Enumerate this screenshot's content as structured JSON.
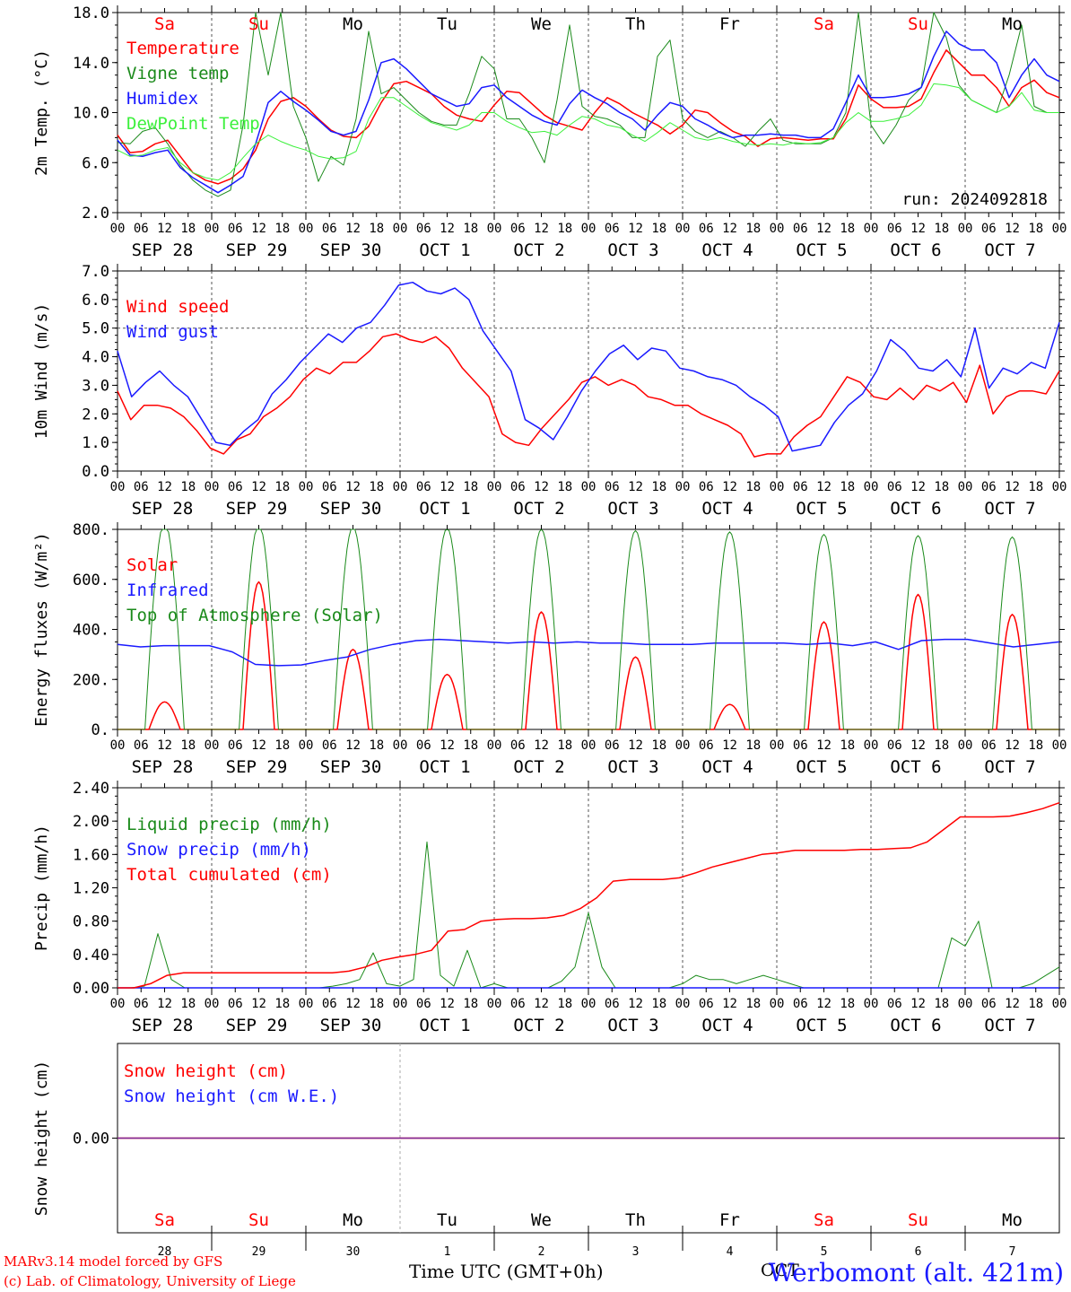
{
  "days": {
    "dow": [
      "Sa",
      "Su",
      "Mo",
      "Tu",
      "We",
      "Th",
      "Fr",
      "Sa",
      "Su",
      "Mo"
    ],
    "weekend": [
      true,
      true,
      false,
      false,
      false,
      false,
      false,
      true,
      true,
      false
    ],
    "dates": [
      "SEP 28",
      "SEP 29",
      "SEP 30",
      "OCT  1",
      "OCT  2",
      "OCT  3",
      "OCT  4",
      "OCT  5",
      "OCT  6",
      "OCT  7"
    ],
    "day_numbers": [
      "28",
      "29",
      "30",
      "1",
      "2",
      "3",
      "4",
      "5",
      "6",
      "7"
    ],
    "hour_ticks": [
      "00",
      "06",
      "12",
      "18"
    ],
    "last_hour": "00"
  },
  "colors": {
    "red": "#ff0000",
    "darkgreen": "#1a8a1a",
    "blue": "#1a1aff",
    "lightgreen": "#3cf03c",
    "purple": "#7a2a9a",
    "axis": "#000000",
    "grid": "#555555"
  },
  "run_label": "run: 2024092818",
  "footer": {
    "model": "MARv3.14 model forced by GFS",
    "lab": "(c) Lab. of Climatology, University of Liege",
    "xlabel": "Time UTC (GMT+0h)",
    "month": "OCT",
    "station": "Werbomont (alt. 421m)"
  },
  "chart_data": [
    {
      "type": "line",
      "ylabel": "2m Temp. (°C)",
      "ylim": [
        2.0,
        18.0
      ],
      "yticks": [
        "2.0",
        "6.0",
        "10.0",
        "14.0",
        "18.0"
      ],
      "ytick_values": [
        2,
        6,
        10,
        14,
        18
      ],
      "grid": "vertical dotted at day boundaries",
      "legend": "top-left",
      "series": [
        {
          "name": "Temperature",
          "color": "red",
          "values": [
            8.2,
            6.8,
            6.9,
            7.5,
            7.8,
            6.5,
            5.2,
            4.6,
            4.3,
            4.7,
            5.5,
            7.0,
            9.5,
            10.9,
            11.2,
            10.5,
            9.5,
            8.6,
            8.1,
            8.0,
            8.9,
            10.8,
            12.3,
            12.5,
            12.0,
            11.5,
            10.5,
            9.8,
            9.5,
            9.3,
            10.6,
            11.7,
            11.6,
            10.7,
            9.8,
            9.2,
            8.9,
            8.6,
            10.0,
            11.2,
            10.7,
            10.0,
            9.5,
            9.0,
            8.3,
            9.0,
            10.2,
            10.0,
            9.2,
            8.5,
            8.1,
            7.3,
            7.9,
            8.0,
            7.9,
            7.8,
            7.9,
            7.9,
            9.5,
            12.2,
            11.1,
            10.4,
            10.4,
            10.5,
            11.1,
            13.2,
            15.0,
            14.0,
            13.0,
            13.0,
            12.0,
            10.5,
            12.0,
            12.6,
            11.6,
            11.2
          ]
        },
        {
          "name": "Vigne temp",
          "color": "darkgreen",
          "values": [
            7.6,
            7.5,
            8.5,
            8.8,
            7.5,
            5.8,
            4.6,
            3.8,
            3.3,
            3.8,
            9.0,
            18.0,
            13.0,
            18.0,
            10.5,
            8.0,
            4.5,
            6.5,
            5.8,
            9.5,
            16.5,
            11.5,
            12.0,
            11.0,
            10.0,
            9.3,
            9.0,
            9.0,
            11.5,
            14.5,
            13.5,
            9.5,
            9.5,
            8.0,
            6.0,
            11.0,
            17.0,
            10.5,
            9.7,
            9.5,
            9.0,
            8.0,
            8.0,
            14.5,
            15.8,
            9.5,
            8.5,
            8.0,
            8.5,
            8.0,
            7.3,
            8.5,
            9.5,
            7.8,
            7.5,
            7.5,
            7.5,
            8.0,
            10.0,
            18.0,
            9.0,
            7.5,
            9.0,
            11.0,
            12.0,
            18.0,
            16.0,
            12.2,
            11.0,
            10.5,
            10.0,
            13.0,
            17.0,
            10.5,
            10.0,
            10.0
          ]
        },
        {
          "name": "Humidex",
          "color": "blue",
          "values": [
            7.8,
            6.6,
            6.5,
            6.8,
            7.0,
            5.6,
            4.8,
            4.2,
            3.6,
            4.2,
            4.9,
            7.5,
            10.8,
            11.7,
            10.9,
            10.2,
            9.4,
            8.5,
            8.2,
            8.5,
            11.0,
            14.0,
            14.3,
            13.5,
            12.5,
            11.5,
            11.0,
            10.5,
            10.7,
            12.0,
            12.2,
            11.2,
            10.5,
            9.8,
            9.3,
            9.0,
            10.7,
            11.8,
            11.2,
            10.7,
            10.0,
            9.5,
            8.6,
            9.8,
            10.8,
            10.5,
            9.5,
            9.0,
            8.4,
            8.0,
            8.2,
            8.2,
            8.3,
            8.2,
            8.2,
            8.0,
            8.0,
            8.7,
            10.8,
            13.0,
            11.2,
            11.2,
            11.3,
            11.5,
            12.0,
            14.5,
            16.5,
            15.5,
            15.0,
            15.0,
            14.0,
            11.2,
            13.0,
            14.3,
            13.0,
            12.5
          ]
        },
        {
          "name": "DewPoint Temp",
          "color": "lightgreen",
          "values": [
            7.0,
            6.5,
            6.6,
            7.0,
            7.2,
            6.0,
            5.2,
            4.8,
            4.6,
            5.2,
            6.4,
            7.5,
            8.2,
            7.7,
            7.3,
            7.0,
            6.5,
            6.3,
            6.4,
            6.9,
            9.5,
            11.2,
            11.2,
            10.5,
            9.8,
            9.2,
            8.9,
            8.6,
            9.0,
            10.0,
            10.0,
            9.3,
            8.8,
            8.4,
            8.5,
            8.2,
            9.0,
            9.7,
            9.5,
            9.0,
            8.8,
            8.2,
            7.7,
            8.4,
            9.2,
            8.6,
            8.0,
            7.8,
            8.0,
            7.7,
            7.5,
            7.4,
            7.5,
            7.4,
            7.6,
            7.5,
            7.6,
            8.0,
            9.2,
            10.0,
            9.3,
            9.3,
            9.5,
            9.8,
            10.6,
            12.3,
            12.2,
            12.0,
            11.0,
            10.5,
            10.0,
            10.5,
            11.6,
            10.2,
            10.0,
            10.0
          ]
        }
      ]
    },
    {
      "type": "line",
      "ylabel": "10m Wind (m/s)",
      "ylim": [
        0.0,
        7.0
      ],
      "yticks": [
        "0.0",
        "1.0",
        "2.0",
        "3.0",
        "4.0",
        "5.0",
        "6.0",
        "7.0"
      ],
      "ytick_values": [
        0,
        1,
        2,
        3,
        4,
        5,
        6,
        7
      ],
      "reference_line": 5.0,
      "legend": "top-left",
      "series": [
        {
          "name": "Wind speed",
          "color": "red",
          "values": [
            2.8,
            1.8,
            2.3,
            2.3,
            2.2,
            1.9,
            1.4,
            0.8,
            0.6,
            1.1,
            1.3,
            1.9,
            2.2,
            2.6,
            3.2,
            3.6,
            3.4,
            3.8,
            3.8,
            4.2,
            4.7,
            4.8,
            4.6,
            4.5,
            4.7,
            4.3,
            3.6,
            3.1,
            2.6,
            1.3,
            1.0,
            0.9,
            1.5,
            2.0,
            2.5,
            3.1,
            3.3,
            3.0,
            3.2,
            3.0,
            2.6,
            2.5,
            2.3,
            2.3,
            2.0,
            1.8,
            1.6,
            1.3,
            0.5,
            0.6,
            0.6,
            1.2,
            1.6,
            1.9,
            2.6,
            3.3,
            3.1,
            2.6,
            2.5,
            2.9,
            2.5,
            3.0,
            2.8,
            3.1,
            2.4,
            3.7,
            2.0,
            2.6,
            2.8,
            2.8,
            2.7,
            3.5
          ]
        },
        {
          "name": "Wind gust",
          "color": "blue",
          "values": [
            4.2,
            2.6,
            3.1,
            3.5,
            3.0,
            2.6,
            1.8,
            1.0,
            0.9,
            1.4,
            1.8,
            2.7,
            3.2,
            3.8,
            4.3,
            4.8,
            4.5,
            5.0,
            5.2,
            5.8,
            6.5,
            6.6,
            6.3,
            6.2,
            6.4,
            6.0,
            4.9,
            4.2,
            3.5,
            1.8,
            1.5,
            1.1,
            1.9,
            2.8,
            3.5,
            4.1,
            4.4,
            3.9,
            4.3,
            4.2,
            3.6,
            3.5,
            3.3,
            3.2,
            3.0,
            2.6,
            2.3,
            1.9,
            0.7,
            0.8,
            0.9,
            1.7,
            2.3,
            2.7,
            3.5,
            4.6,
            4.2,
            3.6,
            3.5,
            3.9,
            3.3,
            5.0,
            2.9,
            3.6,
            3.4,
            3.8,
            3.6,
            5.2
          ]
        }
      ]
    },
    {
      "type": "line",
      "ylabel": "Energy fluxes (W/m²)",
      "ylim": [
        0,
        800
      ],
      "yticks": [
        "0.",
        "200.",
        "400.",
        "600.",
        "800."
      ],
      "ytick_values": [
        0,
        200,
        400,
        600,
        800
      ],
      "legend": "top-left",
      "series": [
        {
          "name": "Solar",
          "color": "red",
          "pattern": "diurnal",
          "peaks": [
            110,
            590,
            320,
            220,
            470,
            290,
            100,
            430,
            540,
            460
          ]
        },
        {
          "name": "Infrared",
          "color": "blue",
          "values": [
            340,
            330,
            335,
            335,
            335,
            310,
            260,
            255,
            258,
            275,
            290,
            320,
            340,
            355,
            360,
            355,
            350,
            345,
            350,
            345,
            350,
            345,
            345,
            340,
            340,
            340,
            345,
            345,
            345,
            345,
            340,
            345,
            335,
            350,
            320,
            355,
            360,
            360,
            345,
            330,
            340,
            350
          ]
        },
        {
          "name": "Top of Atmosphere (Solar)",
          "color": "darkgreen",
          "pattern": "diurnal",
          "peaks": [
            830,
            820,
            810,
            805,
            800,
            795,
            790,
            780,
            775,
            770
          ]
        }
      ]
    },
    {
      "type": "line",
      "ylabel": "Precip (mm/h)",
      "ylim": [
        0.0,
        2.4
      ],
      "yticks": [
        "0.00",
        "0.40",
        "0.80",
        "1.20",
        "1.60",
        "2.00",
        "2.40"
      ],
      "ytick_values": [
        0,
        0.4,
        0.8,
        1.2,
        1.6,
        2.0,
        2.4
      ],
      "legend": "top-left",
      "series": [
        {
          "name": "Liquid precip (mm/h)",
          "color": "darkgreen",
          "values": [
            0,
            0,
            0.02,
            0.65,
            0.1,
            0,
            0,
            0,
            0,
            0,
            0,
            0,
            0,
            0,
            0,
            0,
            0.02,
            0.05,
            0.1,
            0.42,
            0.05,
            0.02,
            0.1,
            1.75,
            0.15,
            0.02,
            0.45,
            0,
            0.05,
            0,
            0,
            0,
            0,
            0.08,
            0.25,
            0.9,
            0.25,
            0,
            0,
            0,
            0,
            0,
            0.05,
            0.15,
            0.1,
            0.1,
            0.05,
            0.1,
            0.15,
            0.1,
            0.05,
            0,
            0,
            0,
            0,
            0,
            0,
            0,
            0,
            0,
            0,
            0,
            0.6,
            0.5,
            0.8,
            0,
            0,
            0,
            0.05,
            0.15,
            0.25
          ]
        },
        {
          "name": "Snow precip (mm/h)",
          "color": "blue",
          "values": [
            0,
            0
          ]
        },
        {
          "name": "Total cumulated (cm)",
          "color": "red",
          "values": [
            0,
            0,
            0.05,
            0.15,
            0.18,
            0.18,
            0.18,
            0.18,
            0.18,
            0.18,
            0.18,
            0.18,
            0.18,
            0.18,
            0.2,
            0.25,
            0.33,
            0.37,
            0.4,
            0.45,
            0.68,
            0.7,
            0.8,
            0.82,
            0.83,
            0.83,
            0.84,
            0.87,
            0.95,
            1.08,
            1.28,
            1.3,
            1.3,
            1.3,
            1.32,
            1.38,
            1.45,
            1.5,
            1.55,
            1.6,
            1.62,
            1.65,
            1.65,
            1.65,
            1.65,
            1.66,
            1.66,
            1.67,
            1.68,
            1.75,
            1.9,
            2.05,
            2.05,
            2.05,
            2.06,
            2.1,
            2.15,
            2.22
          ]
        }
      ]
    },
    {
      "type": "line",
      "ylabel": "Snow height (cm)",
      "ylim": [
        -1,
        1
      ],
      "yticks": [
        "0.00"
      ],
      "ytick_values": [
        0
      ],
      "legend": "top-left",
      "series": [
        {
          "name": "Snow height (cm)",
          "color": "red",
          "values": [
            0,
            0
          ]
        },
        {
          "name": "Snow height (cm W.E.)",
          "color": "blue",
          "values": [
            0,
            0
          ]
        }
      ]
    }
  ]
}
